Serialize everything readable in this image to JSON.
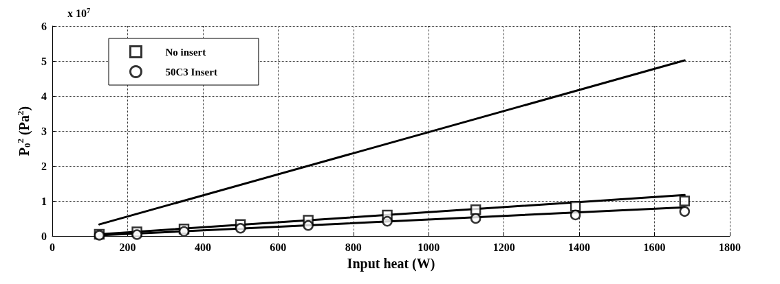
{
  "chart_data": {
    "type": "scatter",
    "xlabel": "Input heat (W)",
    "ylabel": "P$_{0}$$^{2}$ (Pa$^{2}$)",
    "annotations": [
      "x 10$^{7}$"
    ],
    "xlim": [
      0,
      1800
    ],
    "xticks": [
      0,
      200,
      400,
      600,
      800,
      1000,
      1200,
      1400,
      1600,
      1800
    ],
    "ylim": [
      0,
      6
    ],
    "yticks": [
      0,
      1,
      2,
      3,
      4,
      5,
      6
    ],
    "grid": true,
    "legend": "top left",
    "series": [
      {
        "name": "No insert",
        "marker": "square",
        "color": "#000000",
        "x": [
          125,
          225,
          350,
          500,
          680,
          890,
          1125,
          1390,
          1680
        ],
        "values": [
          0.05,
          0.12,
          0.2,
          0.33,
          0.45,
          0.6,
          0.75,
          0.85,
          1.0
        ]
      },
      {
        "name": "50C3 Insert",
        "marker": "circle",
        "color": "#000000",
        "x": [
          125,
          225,
          350,
          500,
          680,
          890,
          1125,
          1390,
          1680
        ],
        "values": [
          0.02,
          0.04,
          0.13,
          0.22,
          0.3,
          0.42,
          0.5,
          0.6,
          0.7
        ]
      },
      {
        "type": "line",
        "marker": "none",
        "line_style": "solid",
        "color": "#000000",
        "x": [
          125,
          1680
        ],
        "values": [
          0.33,
          5.02
        ]
      },
      {
        "type": "line",
        "marker": "none",
        "line_style": "solid",
        "color": "#000000",
        "x": [
          125,
          1680
        ],
        "values": [
          0.05,
          1.17
        ]
      },
      {
        "type": "line",
        "marker": "none",
        "line_style": "solid",
        "color": "#000000",
        "x": [
          125,
          1680
        ],
        "values": [
          0.02,
          0.82
        ]
      }
    ]
  }
}
